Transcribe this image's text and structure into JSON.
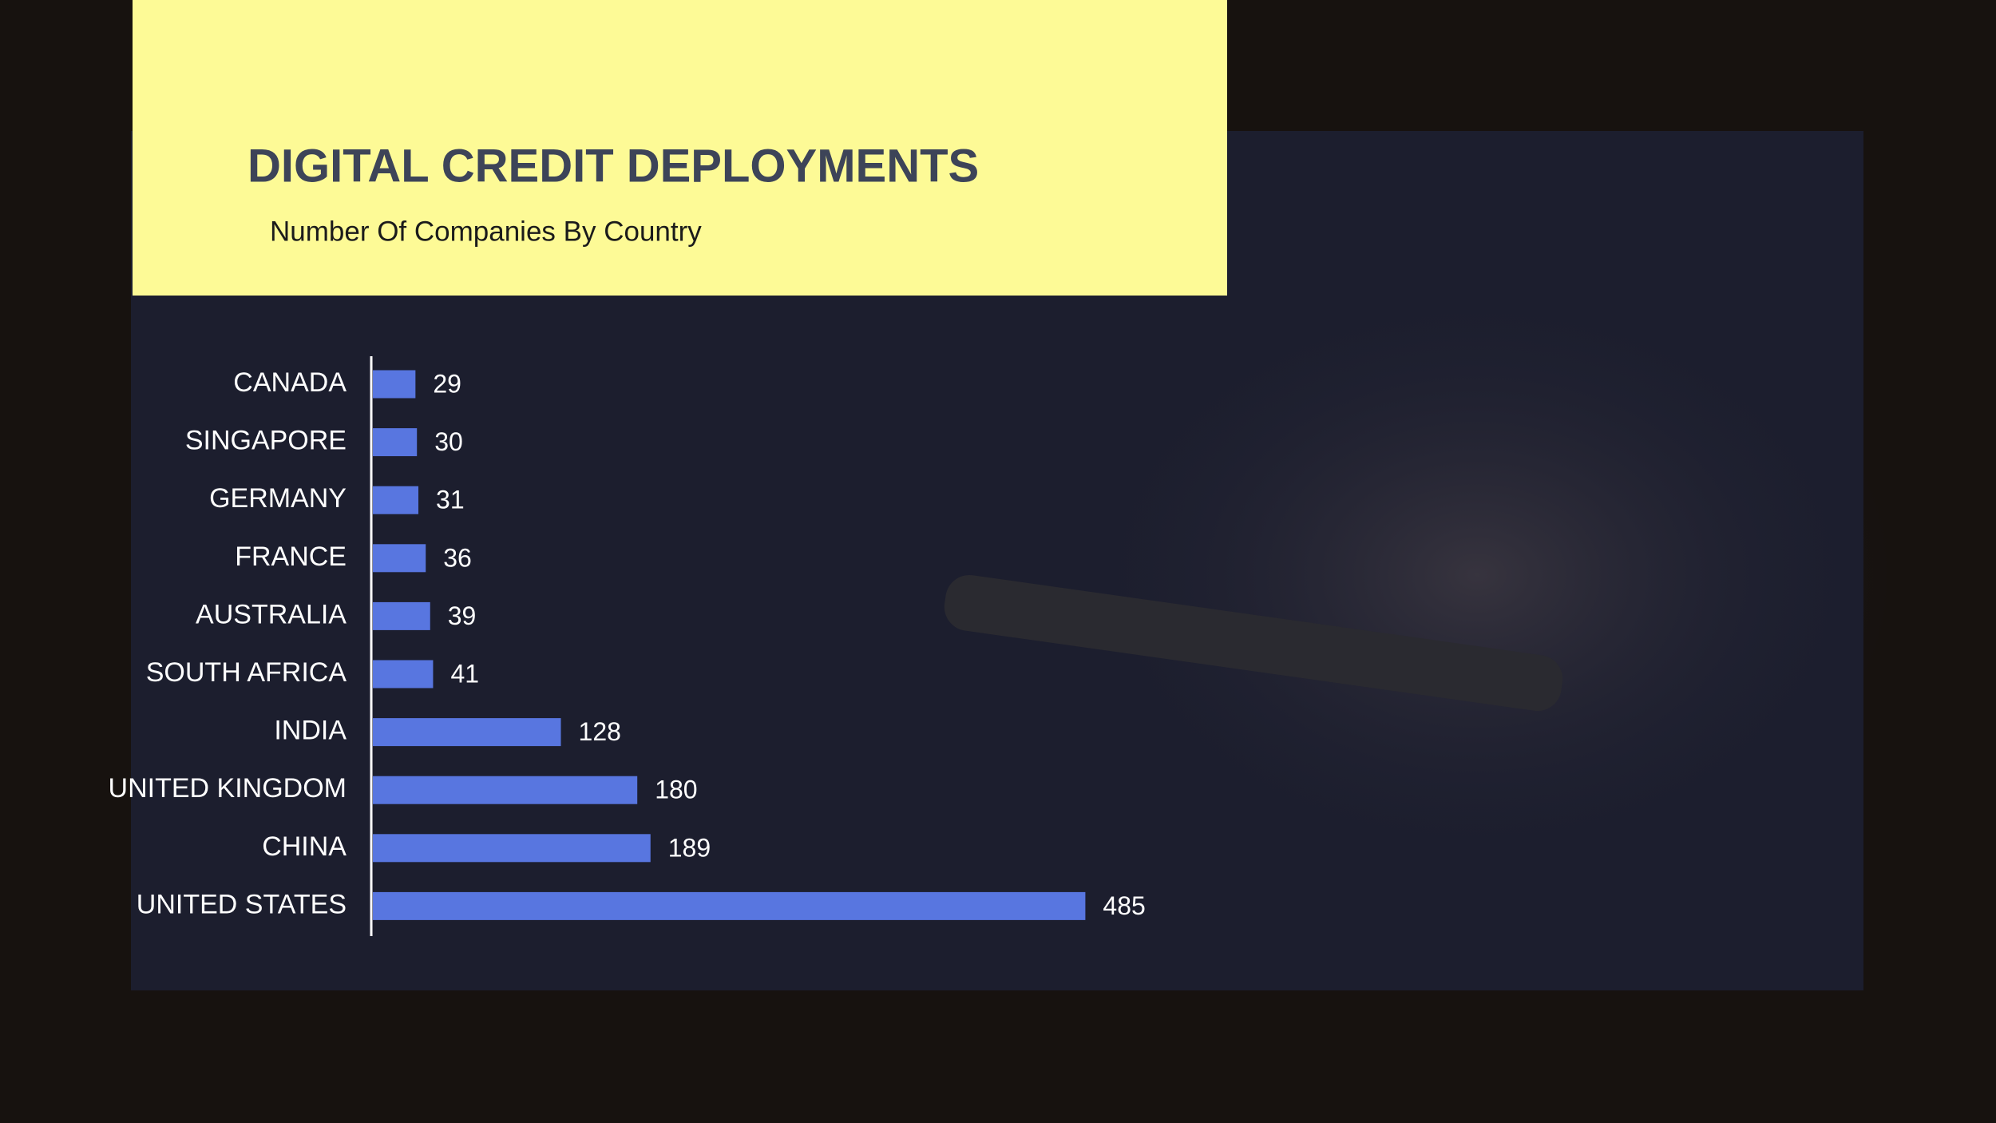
{
  "chart_data": {
    "type": "bar",
    "orientation": "horizontal",
    "title": "DIGITAL CREDIT DEPLOYMENTS",
    "subtitle": "Number Of Companies By Country",
    "categories": [
      "CANADA",
      "SINGAPORE",
      "GERMANY",
      "FRANCE",
      "AUSTRALIA",
      "SOUTH AFRICA",
      "INDIA",
      "UNITED KINGDOM",
      "CHINA",
      "UNITED STATES"
    ],
    "values": [
      29,
      30,
      31,
      36,
      39,
      41,
      128,
      180,
      189,
      485
    ],
    "color": "#5876e0"
  }
}
